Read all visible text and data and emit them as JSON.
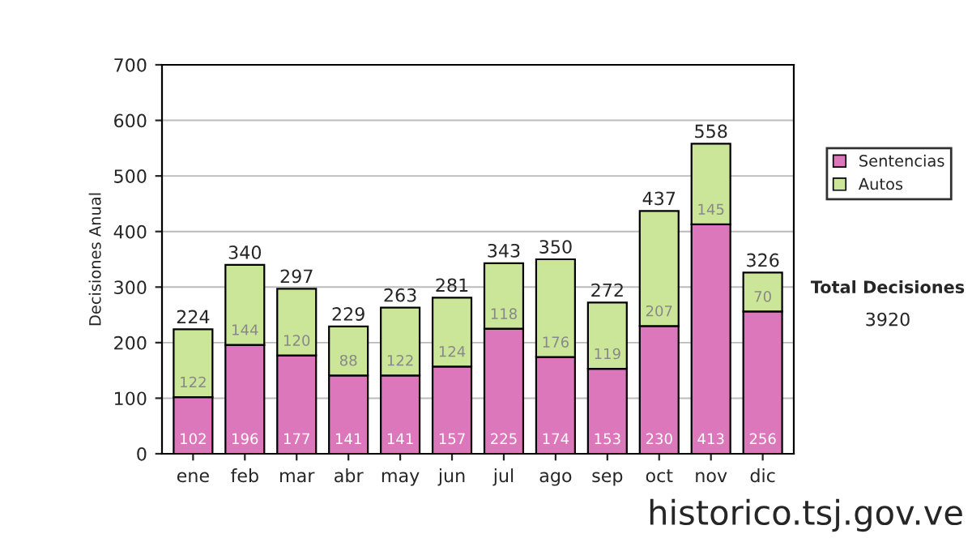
{
  "chart_data": {
    "type": "bar",
    "stacked": true,
    "ylabel": "Decisiones Anual",
    "categories": [
      "ene",
      "feb",
      "mar",
      "abr",
      "may",
      "jun",
      "jul",
      "ago",
      "sep",
      "oct",
      "nov",
      "dic"
    ],
    "series": [
      {
        "name": "Sentencias",
        "color": "#dd77bb",
        "values": [
          102,
          196,
          177,
          141,
          141,
          157,
          225,
          174,
          153,
          230,
          413,
          256
        ]
      },
      {
        "name": "Autos",
        "color": "#cce699",
        "values": [
          122,
          144,
          120,
          88,
          122,
          124,
          118,
          176,
          119,
          207,
          145,
          70
        ]
      }
    ],
    "totals": [
      "224",
      "340",
      "297",
      "229",
      "263",
      "281",
      "343",
      "350",
      "272",
      "437",
      "558",
      "326"
    ],
    "data_labels": true,
    "ylim": [
      0,
      700
    ],
    "yticks": [
      0,
      100,
      200,
      300,
      400,
      500,
      600,
      700
    ],
    "grid": "y",
    "legend": "right",
    "annotations": [
      "Total Decisiones",
      "3920",
      "historico.tsj.gov.ve"
    ]
  }
}
